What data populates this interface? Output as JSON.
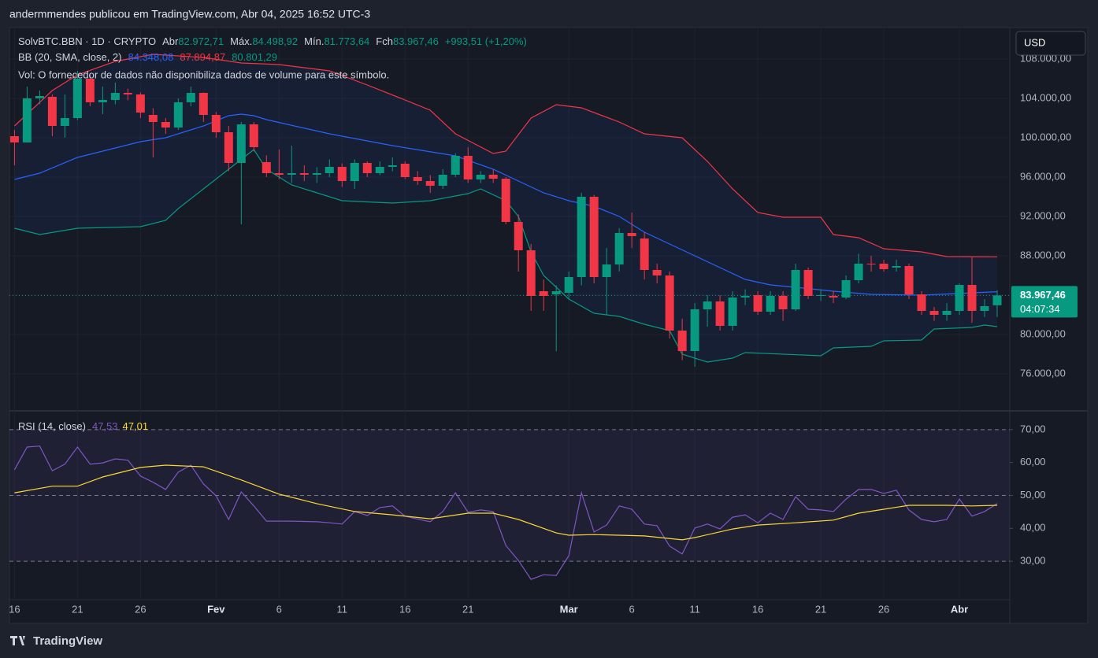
{
  "header": {
    "title": "andermmendes publicou em TradingView.com, Abr 04, 2025 16:52 UTC-3",
    "symbol": "SolvBTC.BBN · 1D · CRYPTO",
    "ohlc": [
      {
        "label": "Abr",
        "value": "82.972,71"
      },
      {
        "label": "Máx.",
        "value": "84.498,92"
      },
      {
        "label": "Mín.",
        "value": "81.773,64"
      },
      {
        "label": "Fch",
        "value": "83.967,46"
      }
    ],
    "change": "+993,51 (+1,20%)",
    "bb_label": "BB (20, SMA, close, 2)",
    "bb_values": [
      "84.348,08",
      "87.894,87",
      "80.801,29"
    ],
    "volume_note": "Vol: O fornecedor de dados não disponibiliza dados de volume para este símbolo.",
    "rsi_label": "RSI (14, close)",
    "rsi_values": [
      "47,53",
      "47,01"
    ],
    "currency": "USD",
    "price_badge": "83.967,46",
    "countdown": "04:07:34"
  },
  "footer": {
    "brand": "TradingView"
  },
  "chart_data": [
    {
      "type": "candlestick",
      "up_color": "#089981",
      "down_color": "#f23645",
      "open": [
        100160,
        99520,
        104000,
        104160,
        101200,
        102000,
        106000,
        103600,
        103840,
        104560,
        104400,
        102320,
        101600,
        101040,
        103600,
        104560,
        102320,
        100560,
        97440,
        101360,
        97520,
        96400,
        96240,
        96400,
        96240,
        96400,
        97040,
        95600,
        97440,
        96400,
        97040,
        97360,
        96000,
        95600,
        95120,
        96240,
        98160,
        95760,
        96240,
        95840,
        91440,
        88560,
        84400,
        84080,
        84240,
        85840,
        94000,
        85840,
        87120,
        90320,
        89760,
        86560,
        86000,
        80400,
        78320,
        82560,
        83360,
        80880,
        83760,
        84000,
        82320,
        83920,
        82560,
        86560,
        83920,
        83920,
        83760,
        85520,
        87200,
        87200,
        86800,
        86960,
        84080,
        82400,
        82000,
        82400,
        85040,
        82400,
        82972.71
      ],
      "high": [
        100800,
        105200,
        104800,
        104400,
        104400,
        106800,
        106400,
        105200,
        105600,
        105000,
        104600,
        103000,
        102000,
        104000,
        105200,
        104600,
        102600,
        101200,
        101600,
        101600,
        98200,
        98800,
        99200,
        97200,
        97000,
        97800,
        97400,
        97800,
        97600,
        97600,
        98000,
        97600,
        96600,
        96200,
        96800,
        98400,
        99040,
        96600,
        96800,
        96000,
        92200,
        89200,
        85600,
        85000,
        86400,
        94400,
        94200,
        88800,
        90800,
        92400,
        90400,
        87200,
        86400,
        81600,
        83200,
        84000,
        84000,
        84400,
        84600,
        84400,
        84400,
        84400,
        87200,
        86800,
        84600,
        84400,
        86000,
        88200,
        88000,
        87600,
        87600,
        87200,
        84400,
        82800,
        83200,
        85200,
        87840,
        83600,
        84498.92
      ],
      "low": [
        97200,
        99520,
        103400,
        100160,
        100000,
        101800,
        103200,
        102400,
        103400,
        103800,
        102000,
        98000,
        100400,
        100800,
        103200,
        101600,
        100000,
        96600,
        91200,
        98600,
        96000,
        95800,
        95400,
        95600,
        95400,
        96000,
        95000,
        94800,
        96000,
        96200,
        96600,
        95800,
        95200,
        94400,
        94800,
        96000,
        95400,
        95400,
        95400,
        91200,
        86400,
        82400,
        82400,
        78300,
        83600,
        85000,
        85200,
        82000,
        86400,
        88800,
        85600,
        85200,
        79600,
        77400,
        76720,
        80800,
        80400,
        80400,
        83000,
        82000,
        82000,
        81400,
        82400,
        83600,
        83400,
        83200,
        83600,
        85200,
        86400,
        86400,
        86400,
        83600,
        82000,
        81400,
        81400,
        82000,
        81200,
        81800,
        81773.64
      ],
      "close": [
        99520,
        104000,
        104240,
        101200,
        102000,
        106000,
        103600,
        103840,
        104560,
        104400,
        102560,
        101600,
        101040,
        103600,
        104560,
        102320,
        100560,
        97440,
        101360,
        99040,
        96400,
        96240,
        96400,
        96240,
        96400,
        97040,
        95600,
        97440,
        96400,
        97040,
        97200,
        96000,
        95600,
        95120,
        96240,
        98160,
        95760,
        96240,
        95840,
        91440,
        88560,
        83920,
        83920,
        84400,
        85840,
        94000,
        85840,
        87120,
        90320,
        90000,
        86560,
        86000,
        80400,
        78320,
        82560,
        83360,
        80880,
        83760,
        83920,
        82320,
        83920,
        82560,
        86560,
        83920,
        84000,
        83760,
        85520,
        87200,
        87120,
        86640,
        86960,
        84080,
        82400,
        82000,
        82400,
        85040,
        82400,
        82880,
        83967.46
      ],
      "series": [
        {
          "name": "Basis",
          "color": "#2962ff",
          "x": [
            0,
            2,
            5,
            10,
            12,
            15,
            17,
            18,
            19,
            20,
            25,
            30,
            35,
            38,
            40,
            42,
            44,
            46,
            48,
            50,
            52,
            54,
            56,
            58,
            60,
            62,
            65,
            68,
            72,
            78
          ],
          "values": [
            95760,
            96400,
            98000,
            99600,
            100000,
            101200,
            102240,
            102400,
            102240,
            101840,
            100400,
            99200,
            98160,
            96800,
            95600,
            94400,
            93600,
            93040,
            92000,
            90400,
            89200,
            88000,
            86800,
            85600,
            85040,
            84800,
            84400,
            84080,
            84000,
            84348.08
          ]
        },
        {
          "name": "Upper",
          "color": "#f23645",
          "x": [
            0,
            3,
            5,
            8,
            11,
            15,
            18,
            21,
            25,
            28,
            31,
            33,
            35,
            38,
            39,
            41,
            43,
            45,
            48,
            50,
            53,
            55,
            57,
            59,
            61,
            64,
            65,
            67,
            69,
            72,
            74,
            78
          ],
          "values": [
            101200,
            104800,
            106400,
            107760,
            108480,
            108160,
            107600,
            107440,
            106800,
            105360,
            103840,
            102800,
            100400,
            98400,
            98640,
            102000,
            103360,
            103040,
            101600,
            100400,
            100000,
            97600,
            94800,
            92400,
            91920,
            91920,
            90160,
            89840,
            88720,
            88400,
            87920,
            87894.87
          ]
        },
        {
          "name": "Lower",
          "color": "#089981",
          "x": [
            0,
            2,
            5,
            10,
            12,
            13,
            15,
            17,
            19,
            20,
            22,
            24,
            26,
            30,
            33,
            36,
            37,
            39,
            40,
            41,
            42,
            43,
            44,
            46,
            48,
            50,
            52,
            53,
            55,
            57,
            58,
            64,
            65,
            68,
            69,
            72,
            73,
            76,
            77,
            78
          ],
          "values": [
            90800,
            90160,
            90800,
            90960,
            91600,
            92800,
            94800,
            96800,
            98800,
            96800,
            95200,
            94400,
            93600,
            93360,
            93600,
            94320,
            94800,
            93600,
            92000,
            88400,
            86000,
            84800,
            83600,
            82160,
            81840,
            81040,
            80400,
            78000,
            77200,
            77600,
            78160,
            77840,
            78640,
            78800,
            79360,
            79440,
            80560,
            80720,
            80960,
            80801.29
          ]
        }
      ],
      "band_fill": "#2962ff",
      "xlim": [
        -0.4,
        79
      ],
      "xticks": [
        {
          "value": 0,
          "label": "16"
        },
        {
          "value": 5,
          "label": "21"
        },
        {
          "value": 10,
          "label": "26"
        },
        {
          "value": 16,
          "label": "Fev"
        },
        {
          "value": 21,
          "label": "6"
        },
        {
          "value": 26,
          "label": "11"
        },
        {
          "value": 31,
          "label": "16"
        },
        {
          "value": 36,
          "label": "21"
        },
        {
          "value": 44,
          "label": "Mar"
        },
        {
          "value": 49,
          "label": "6"
        },
        {
          "value": 54,
          "label": "11"
        },
        {
          "value": 59,
          "label": "16"
        },
        {
          "value": 64,
          "label": "21"
        },
        {
          "value": 69,
          "label": "26"
        },
        {
          "value": 75,
          "label": "Abr"
        }
      ],
      "ylim": [
        72240,
        111120
      ],
      "yticks": [
        {
          "value": 76000,
          "label": "76.000,00"
        },
        {
          "value": 80000,
          "label": "80.000,00"
        },
        {
          "value": 84000,
          "label": "84.000,00"
        },
        {
          "value": 88000,
          "label": "88.000,00"
        },
        {
          "value": 92000,
          "label": "92.000,00"
        },
        {
          "value": 96000,
          "label": "96.000,00"
        },
        {
          "value": 100000,
          "label": "100.000,00"
        },
        {
          "value": 104000,
          "label": "104.000,00"
        },
        {
          "value": 108000,
          "label": "108.000,00"
        }
      ],
      "grid": true
    },
    {
      "type": "line",
      "series": [
        {
          "name": "RSI",
          "color": "#7e57c2",
          "values": [
            57.8,
            64.7,
            65.0,
            57.5,
            59.5,
            64.7,
            59.5,
            59.9,
            61.1,
            60.7,
            55.9,
            54.0,
            51.8,
            57.1,
            59.2,
            53.5,
            49.9,
            42.7,
            51.1,
            46.8,
            42.2,
            42.2,
            42.2,
            42.1,
            42.0,
            41.7,
            41.3,
            45.1,
            43.9,
            46.3,
            46.8,
            43.7,
            42.8,
            42.0,
            45.1,
            50.8,
            44.9,
            45.6,
            45.1,
            34.8,
            30.2,
            24.5,
            25.9,
            25.7,
            31.7,
            50.8,
            38.9,
            41.0,
            46.8,
            45.8,
            41.3,
            40.8,
            34.6,
            32.2,
            40.1,
            41.3,
            39.8,
            43.4,
            44.1,
            41.7,
            44.6,
            42.7,
            49.6,
            45.8,
            45.6,
            45.1,
            48.9,
            51.8,
            51.8,
            50.6,
            51.6,
            45.6,
            42.7,
            42.0,
            42.7,
            48.9,
            43.7,
            45.1,
            47.53
          ]
        },
        {
          "name": "RSI MA",
          "color": "#fdd835",
          "x": [
            0,
            3,
            5,
            7,
            10,
            12,
            15,
            18,
            21,
            24,
            27,
            30,
            33,
            36,
            38,
            40,
            43,
            44,
            46,
            50,
            53,
            54,
            57,
            59,
            62,
            65,
            67,
            69,
            71,
            74,
            76,
            78
          ],
          "values": [
            50.8,
            52.8,
            52.8,
            55.6,
            58.5,
            59.2,
            58.7,
            54.7,
            50.4,
            47.5,
            45.1,
            44.1,
            42.9,
            44.6,
            44.6,
            42.7,
            38.6,
            37.9,
            38.1,
            37.7,
            36.5,
            37.2,
            39.8,
            41.0,
            41.7,
            42.5,
            44.6,
            45.8,
            47.0,
            47.0,
            46.8,
            47.01
          ]
        }
      ],
      "levels": [
        30,
        50,
        70
      ],
      "band_fill": "#7e57c2",
      "ylim": [
        18.3,
        75.7
      ],
      "yticks": [
        {
          "value": 30,
          "label": "30,00"
        },
        {
          "value": 40,
          "label": "40,00"
        },
        {
          "value": 50,
          "label": "50,00"
        },
        {
          "value": 60,
          "label": "60,00"
        },
        {
          "value": 70,
          "label": "70,00"
        }
      ]
    }
  ]
}
